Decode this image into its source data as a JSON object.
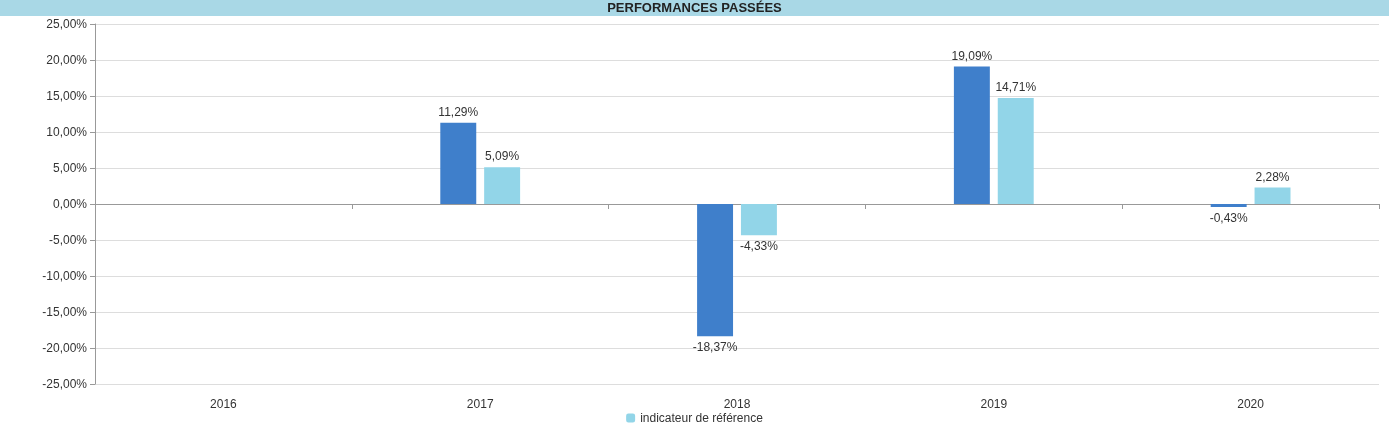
{
  "chart_data": {
    "type": "bar",
    "title": "PERFORMANCES PASSÉES",
    "categories": [
      "2016",
      "2017",
      "2018",
      "2019",
      "2020"
    ],
    "series": [
      {
        "color": "#3f7fcb",
        "values": [
          null,
          11.29,
          -18.37,
          19.09,
          -0.43
        ],
        "value_labels": [
          null,
          "11,29%",
          "-18,37%",
          "19,09%",
          "-0,43%"
        ]
      },
      {
        "name": "indicateur de référence",
        "color": "#92d5e8",
        "values": [
          null,
          5.09,
          -4.33,
          14.71,
          2.28
        ],
        "value_labels": [
          null,
          "5,09%",
          "-4,33%",
          "14,71%",
          "2,28%"
        ]
      }
    ],
    "ylim": [
      -25,
      25
    ],
    "yticks": [
      {
        "value": -25,
        "label": "-25,00%"
      },
      {
        "value": -20,
        "label": "-20,00%"
      },
      {
        "value": -15,
        "label": "-15,00%"
      },
      {
        "value": -10,
        "label": "-10,00%"
      },
      {
        "value": -5,
        "label": "-5,00%"
      },
      {
        "value": 0,
        "label": "0,00%"
      },
      {
        "value": 5,
        "label": "5,00%"
      },
      {
        "value": 10,
        "label": "10,00%"
      },
      {
        "value": 15,
        "label": "15,00%"
      },
      {
        "value": 20,
        "label": "20,00%"
      },
      {
        "value": 25,
        "label": "25,00%"
      }
    ],
    "grid": "y",
    "legend": "bottom"
  }
}
